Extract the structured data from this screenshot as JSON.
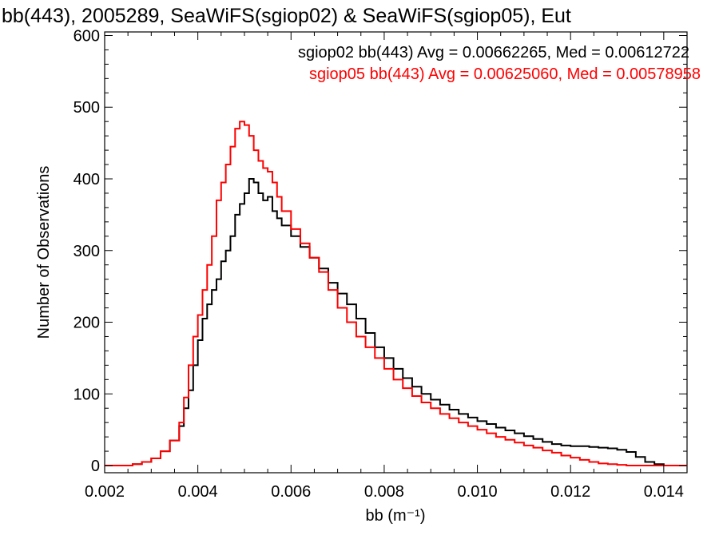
{
  "chart_data": {
    "type": "histogram",
    "title": "bb(443), 2005289, SeaWiFS(sgiop02) & SeaWiFS(sgiop05), Eut",
    "xlabel": "bb (m⁻¹)",
    "ylabel": "Number of Observations",
    "xlim": [
      0.002,
      0.0145
    ],
    "ylim": [
      -10,
      605
    ],
    "xticks": [
      "0.002",
      "0.004",
      "0.006",
      "0.008",
      "0.010",
      "0.012",
      "0.014"
    ],
    "xtick_values": [
      0.002,
      0.004,
      0.006,
      0.008,
      0.01,
      0.012,
      0.014
    ],
    "yticks": [
      "0",
      "100",
      "200",
      "300",
      "400",
      "500",
      "600"
    ],
    "ytick_values": [
      0,
      100,
      200,
      300,
      400,
      500,
      600
    ],
    "grid": false,
    "legend_position": "top-right",
    "series": [
      {
        "name": "sgiop02",
        "legend": "sgiop02 bb(443) Avg = 0.00662265, Med = 0.00612722",
        "color": "#000000",
        "points": [
          [
            0.002,
            0
          ],
          [
            0.0024,
            0
          ],
          [
            0.0026,
            2
          ],
          [
            0.0028,
            5
          ],
          [
            0.003,
            10
          ],
          [
            0.0032,
            20
          ],
          [
            0.0034,
            35
          ],
          [
            0.0036,
            55
          ],
          [
            0.0037,
            80
          ],
          [
            0.0038,
            105
          ],
          [
            0.0039,
            140
          ],
          [
            0.004,
            175
          ],
          [
            0.0041,
            205
          ],
          [
            0.0042,
            225
          ],
          [
            0.0043,
            245
          ],
          [
            0.0044,
            260
          ],
          [
            0.0045,
            285
          ],
          [
            0.0046,
            300
          ],
          [
            0.0047,
            320
          ],
          [
            0.0048,
            350
          ],
          [
            0.0049,
            365
          ],
          [
            0.005,
            380
          ],
          [
            0.0051,
            400
          ],
          [
            0.0052,
            395
          ],
          [
            0.0053,
            380
          ],
          [
            0.0054,
            370
          ],
          [
            0.0055,
            375
          ],
          [
            0.0056,
            355
          ],
          [
            0.0057,
            345
          ],
          [
            0.0058,
            335
          ],
          [
            0.006,
            320
          ],
          [
            0.0062,
            305
          ],
          [
            0.0064,
            290
          ],
          [
            0.0066,
            275
          ],
          [
            0.0068,
            255
          ],
          [
            0.007,
            240
          ],
          [
            0.0072,
            225
          ],
          [
            0.0074,
            205
          ],
          [
            0.0076,
            185
          ],
          [
            0.0078,
            165
          ],
          [
            0.008,
            150
          ],
          [
            0.0082,
            135
          ],
          [
            0.0084,
            122
          ],
          [
            0.0086,
            110
          ],
          [
            0.0088,
            100
          ],
          [
            0.009,
            92
          ],
          [
            0.0092,
            85
          ],
          [
            0.0094,
            78
          ],
          [
            0.0096,
            72
          ],
          [
            0.0098,
            67
          ],
          [
            0.01,
            62
          ],
          [
            0.0102,
            58
          ],
          [
            0.0104,
            53
          ],
          [
            0.0106,
            49
          ],
          [
            0.0108,
            45
          ],
          [
            0.011,
            41
          ],
          [
            0.0112,
            37
          ],
          [
            0.0114,
            33
          ],
          [
            0.0116,
            30
          ],
          [
            0.0118,
            28
          ],
          [
            0.012,
            27
          ],
          [
            0.0122,
            27
          ],
          [
            0.0124,
            26
          ],
          [
            0.0126,
            25
          ],
          [
            0.0128,
            24
          ],
          [
            0.013,
            22
          ],
          [
            0.0132,
            19
          ],
          [
            0.0134,
            12
          ],
          [
            0.0136,
            5
          ],
          [
            0.0138,
            2
          ],
          [
            0.014,
            0
          ],
          [
            0.0145,
            0
          ]
        ]
      },
      {
        "name": "sgiop05",
        "legend": "sgiop05 bb(443) Avg = 0.00625060, Med = 0.00578958",
        "color": "#ff0000",
        "points": [
          [
            0.002,
            0
          ],
          [
            0.0024,
            0
          ],
          [
            0.0026,
            2
          ],
          [
            0.0028,
            5
          ],
          [
            0.003,
            10
          ],
          [
            0.0032,
            20
          ],
          [
            0.0034,
            35
          ],
          [
            0.0036,
            60
          ],
          [
            0.0037,
            95
          ],
          [
            0.0038,
            140
          ],
          [
            0.0039,
            180
          ],
          [
            0.004,
            210
          ],
          [
            0.0041,
            245
          ],
          [
            0.0042,
            280
          ],
          [
            0.0043,
            320
          ],
          [
            0.0044,
            370
          ],
          [
            0.0045,
            395
          ],
          [
            0.0046,
            420
          ],
          [
            0.0047,
            445
          ],
          [
            0.0048,
            470
          ],
          [
            0.0049,
            480
          ],
          [
            0.005,
            475
          ],
          [
            0.0051,
            460
          ],
          [
            0.0052,
            440
          ],
          [
            0.0053,
            425
          ],
          [
            0.0054,
            415
          ],
          [
            0.0055,
            410
          ],
          [
            0.0056,
            395
          ],
          [
            0.0057,
            375
          ],
          [
            0.0058,
            355
          ],
          [
            0.006,
            330
          ],
          [
            0.0062,
            310
          ],
          [
            0.0064,
            290
          ],
          [
            0.0066,
            270
          ],
          [
            0.0068,
            245
          ],
          [
            0.007,
            220
          ],
          [
            0.0072,
            200
          ],
          [
            0.0074,
            180
          ],
          [
            0.0076,
            165
          ],
          [
            0.0078,
            150
          ],
          [
            0.008,
            135
          ],
          [
            0.0082,
            120
          ],
          [
            0.0084,
            108
          ],
          [
            0.0086,
            97
          ],
          [
            0.0088,
            88
          ],
          [
            0.009,
            80
          ],
          [
            0.0092,
            72
          ],
          [
            0.0094,
            66
          ],
          [
            0.0096,
            60
          ],
          [
            0.0098,
            55
          ],
          [
            0.01,
            50
          ],
          [
            0.0102,
            45
          ],
          [
            0.0104,
            40
          ],
          [
            0.0106,
            36
          ],
          [
            0.0108,
            32
          ],
          [
            0.011,
            28
          ],
          [
            0.0112,
            25
          ],
          [
            0.0114,
            21
          ],
          [
            0.0116,
            18
          ],
          [
            0.0118,
            14
          ],
          [
            0.012,
            11
          ],
          [
            0.0122,
            8
          ],
          [
            0.0124,
            5
          ],
          [
            0.0126,
            3
          ],
          [
            0.0128,
            2
          ],
          [
            0.013,
            1
          ],
          [
            0.0132,
            0
          ],
          [
            0.0145,
            0
          ]
        ]
      }
    ]
  }
}
